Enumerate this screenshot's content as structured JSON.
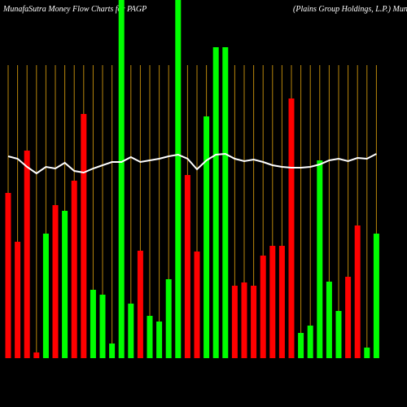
{
  "chart_data": {
    "type": "bar",
    "title": "MunafaSutra  Money Flow  Charts for PAGP",
    "subtitle": "(Plains Group Holdings, L.P.) MunafaSutra.com",
    "ylim": [
      0,
      440
    ],
    "series": [
      {
        "name": "money flow",
        "colors": [
          "#ff0000",
          "#ff0000",
          "#ff0000",
          "#ff0000",
          "#00ff00",
          "#ff0000",
          "#00ff00",
          "#ff0000",
          "#ff0000",
          "#00ff00",
          "#00ff00",
          "#00ff00",
          "#00ff00",
          "#00ff00",
          "#ff0000",
          "#00ff00",
          "#00ff00",
          "#00ff00",
          "#00ff00",
          "#ff0000",
          "#ff0000",
          "#00ff00",
          "#00ff00",
          "#00ff00",
          "#ff0000",
          "#ff0000",
          "#ff0000",
          "#ff0000",
          "#ff0000",
          "#ff0000",
          "#ff0000",
          "#00ff00",
          "#00ff00",
          "#00ff00",
          "#00ff00",
          "#00ff00",
          "#ff0000",
          "#ff0000",
          "#00ff00",
          "#00ff00"
        ],
        "values": [
          203,
          143,
          255,
          7,
          153,
          188,
          181,
          218,
          300,
          84,
          78,
          18,
          440,
          67,
          132,
          52,
          45,
          97,
          440,
          225,
          131,
          297,
          382,
          382,
          89,
          93,
          89,
          126,
          138,
          138,
          319,
          31,
          40,
          243,
          94,
          58,
          100,
          163,
          13,
          153
        ]
      },
      {
        "name": "price",
        "color": "#ffffff",
        "values": [
          248,
          245,
          235,
          227,
          235,
          233,
          240,
          230,
          228,
          233,
          237,
          241,
          241,
          247,
          241,
          243,
          245,
          248,
          250,
          245,
          232,
          243,
          250,
          251,
          245,
          242,
          244,
          241,
          237,
          235,
          234,
          234,
          235,
          238,
          243,
          245,
          242,
          246,
          245,
          251
        ]
      }
    ]
  }
}
